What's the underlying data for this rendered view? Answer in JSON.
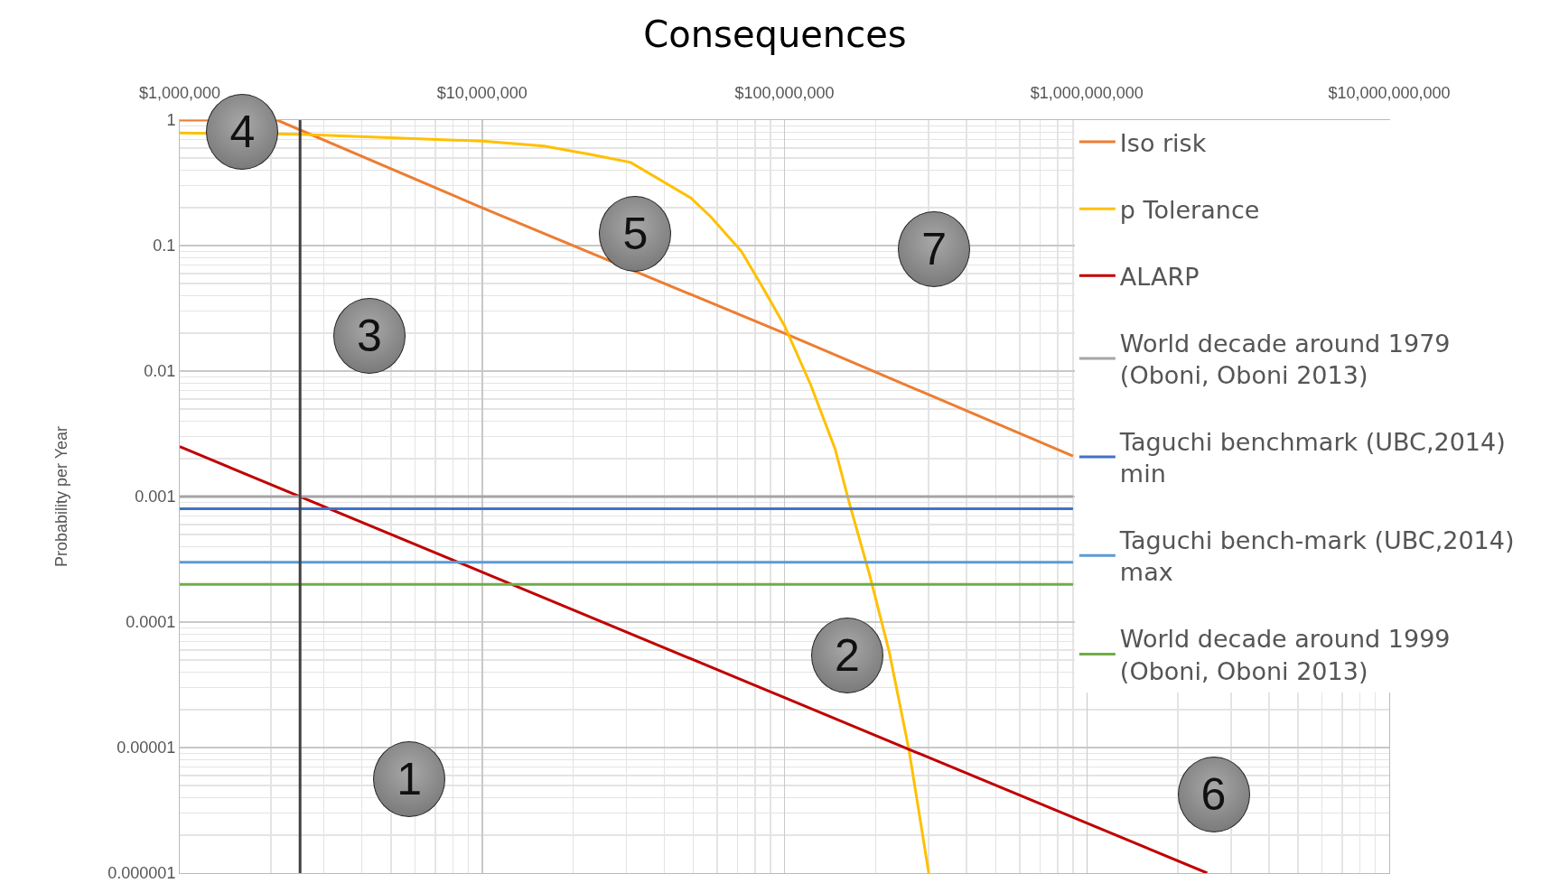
{
  "chart_data": {
    "type": "line",
    "title": "Consequences",
    "ylabel": "Probability per Year",
    "log": "xy",
    "xlim": [
      1000000,
      10000000000
    ],
    "xticks": [
      {
        "value": 1000000,
        "label": "$1,000,000"
      },
      {
        "value": 10000000,
        "label": "$10,000,000"
      },
      {
        "value": 100000000,
        "label": "$100,000,000"
      },
      {
        "value": 1000000000,
        "label": "$1,000,000,000"
      },
      {
        "value": 10000000000,
        "label": "$10,000,000,000"
      }
    ],
    "ylim": [
      1e-06,
      1
    ],
    "yticks": [
      1,
      0.1,
      0.01,
      0.001,
      0.0001,
      {
        "value": 1e-05,
        "label": "0.00001"
      },
      {
        "value": 1e-06,
        "label": "0.000001"
      }
    ],
    "grid": true,
    "legend": "top right",
    "marker": "none",
    "line_style": "solid",
    "series": [
      {
        "name": "Iso risk",
        "color": "#ed7d31",
        "x": [
          1000000,
          2100000,
          10000000,
          100000000,
          900000000
        ],
        "values": [
          1,
          1,
          0.2,
          0.02,
          0.0021
        ]
      },
      {
        "name": "p Tolerance",
        "color": "#ffc000",
        "x": [
          1000000,
          2500000,
          10000000,
          16000000,
          23000000,
          31000000,
          49000000,
          57000000,
          72000000,
          84000000,
          100000000,
          122000000,
          147000000,
          164000000,
          191000000,
          222000000,
          258000000,
          300000000
        ],
        "values": [
          0.79,
          0.77,
          0.68,
          0.62,
          0.53,
          0.46,
          0.24,
          0.17,
          0.09,
          0.048,
          0.023,
          0.0078,
          0.0024,
          0.00088,
          0.00024,
          5.8e-05,
          9.6e-06,
          1e-06
        ]
      },
      {
        "name": "ALARP",
        "color": "#c00000",
        "x": [
          1000000,
          10000000,
          100000000,
          1000000000,
          2500000000
        ],
        "values": [
          0.0025,
          0.00025,
          2.5e-05,
          2.5e-06,
          1e-06
        ]
      },
      {
        "name": "World decade around 1979 (Oboni, Oboni 2013)",
        "color": "#a5a5a5",
        "x": [
          1000000,
          900000000
        ],
        "values": [
          0.001,
          0.001
        ]
      },
      {
        "name": "Taguchi benchmark (UBC,2014) min",
        "color": "#4472c4",
        "x": [
          1000000,
          900000000
        ],
        "values": [
          0.0008,
          0.0008
        ]
      },
      {
        "name": "Taguchi bench-mark (UBC,2014) max",
        "color": "#5b9bd5",
        "x": [
          1000000,
          900000000
        ],
        "values": [
          0.0003,
          0.0003
        ]
      },
      {
        "name": "World decade around 1999 (Oboni, Oboni 2013)",
        "color": "#70ad47",
        "x": [
          1000000,
          900000000
        ],
        "values": [
          0.0002,
          0.0002
        ]
      },
      {
        "color": "#404040",
        "x": [
          2500000,
          2500000
        ],
        "values": [
          1e-06,
          1
        ]
      }
    ],
    "annotations": [
      "4",
      "5",
      "7",
      "3",
      "2",
      "1",
      "6"
    ]
  }
}
